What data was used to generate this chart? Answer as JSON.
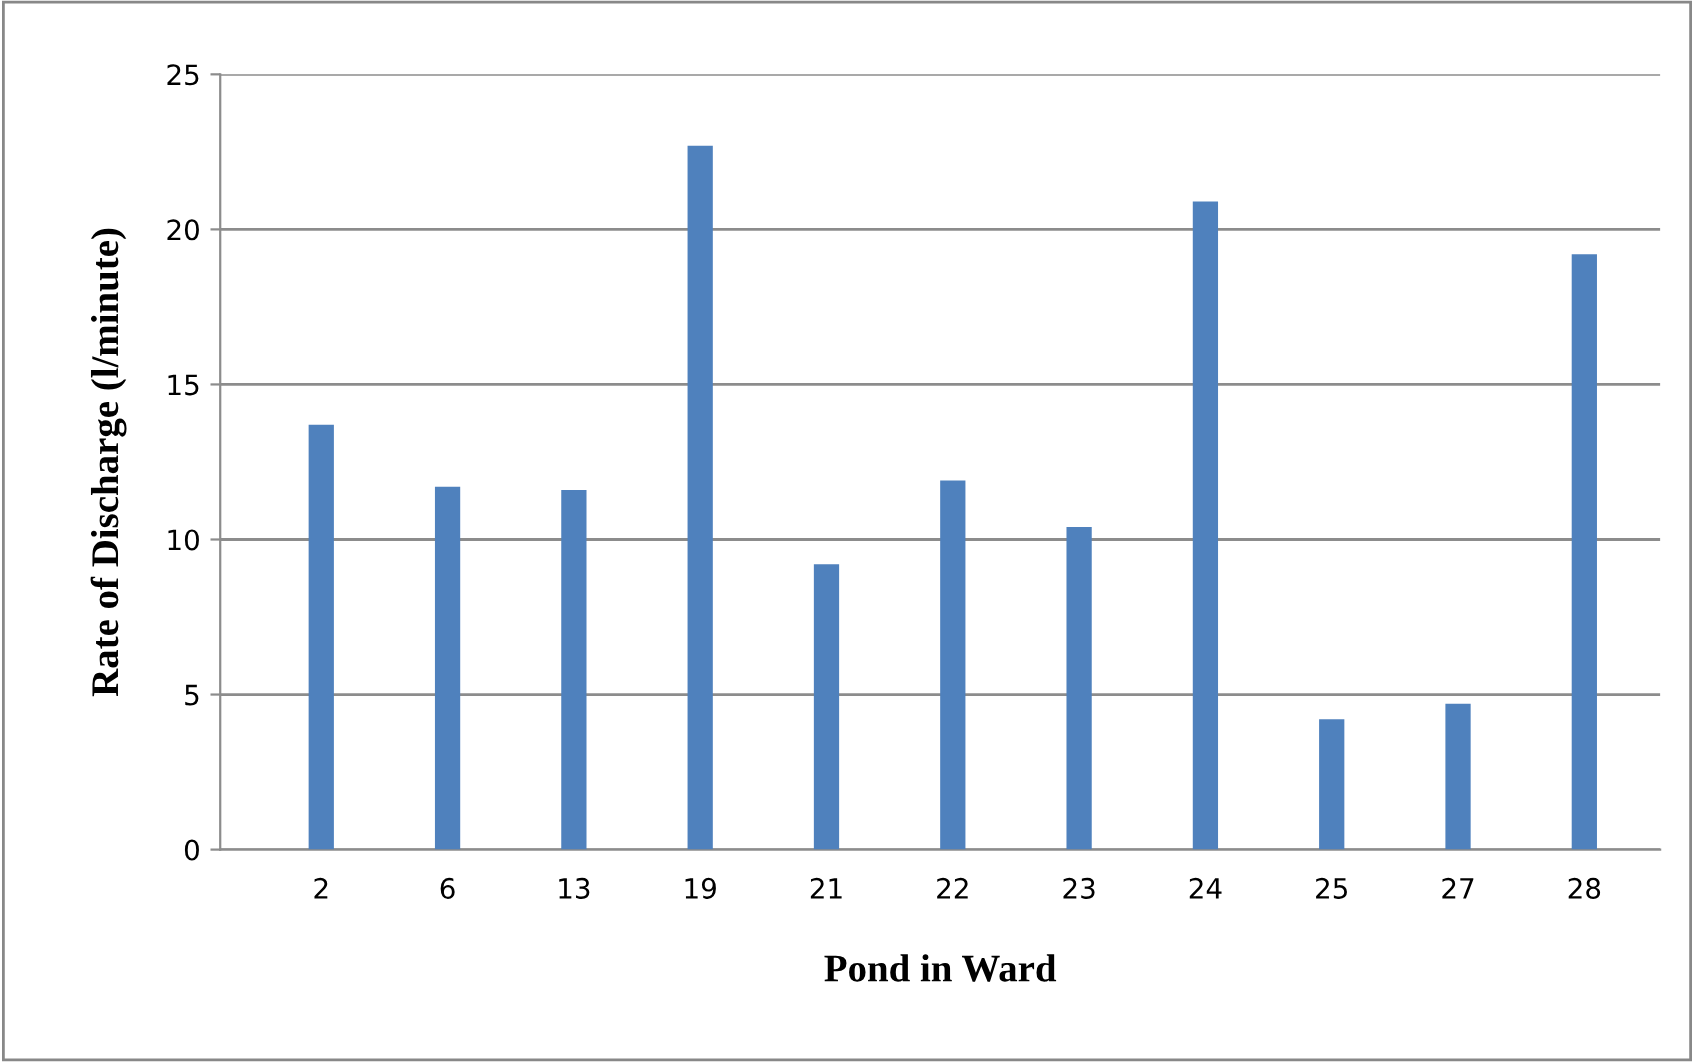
{
  "chart_data": {
    "type": "bar",
    "xlabel": "Pond in Ward",
    "ylabel": "Rate of Discharge (l/minute)",
    "categories": [
      "2",
      "6",
      "13",
      "19",
      "21",
      "22",
      "23",
      "24",
      "25",
      "27",
      "28"
    ],
    "values": [
      13.7,
      11.7,
      11.6,
      22.7,
      9.2,
      11.9,
      10.4,
      20.9,
      4.2,
      4.7,
      19.2
    ],
    "color": "#4f81bd",
    "ylim": [
      0,
      25
    ],
    "yticks": [
      0,
      5,
      10,
      15,
      20,
      25
    ],
    "grid": "y",
    "legend": false
  }
}
